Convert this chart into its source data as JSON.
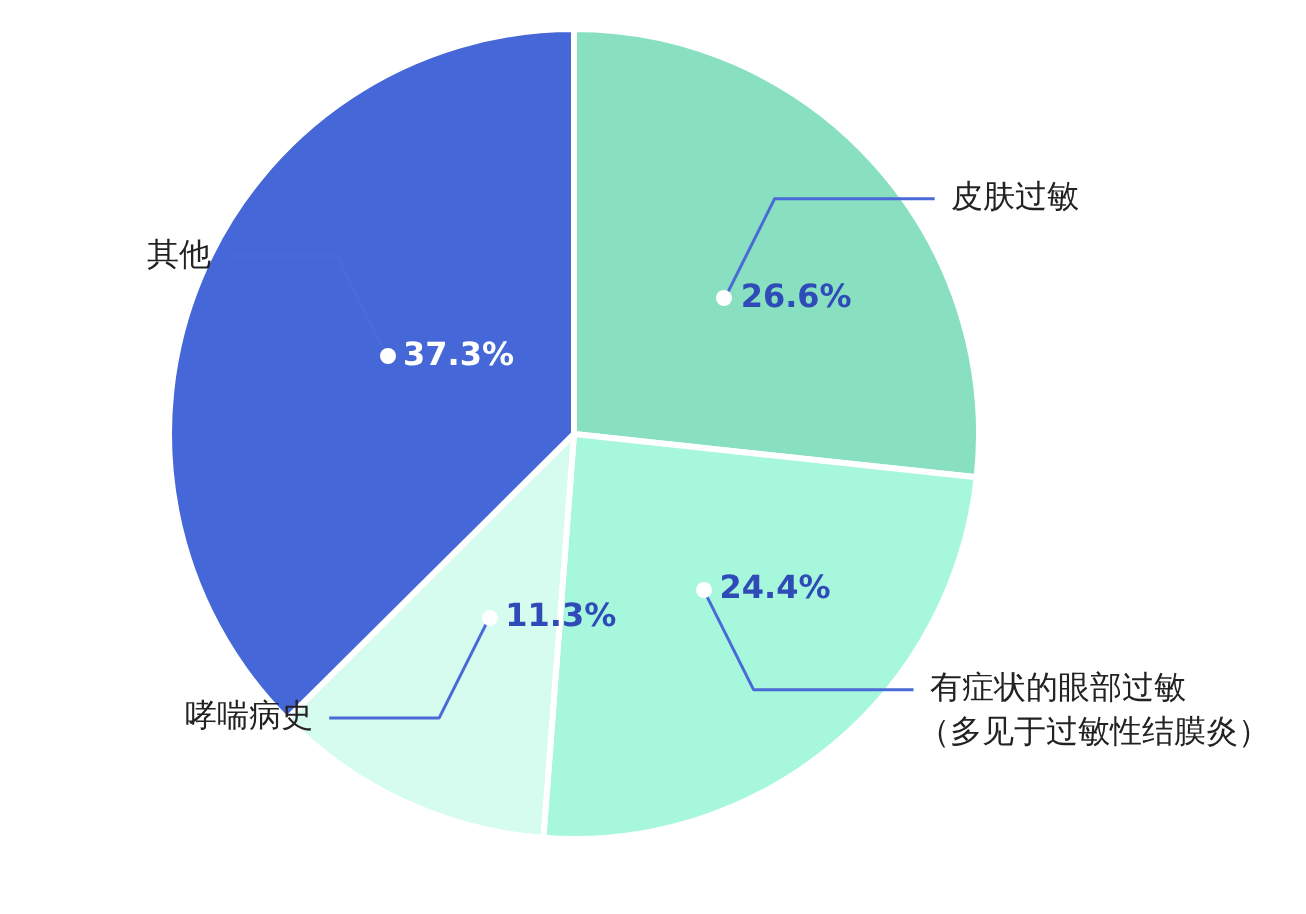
{
  "chart_data": {
    "type": "pie",
    "categories": [
      "皮肤过敏",
      "有症状的眼部过敏（多见于过敏性结膜炎）",
      "哮喘病史",
      "其他"
    ],
    "values": [
      26.6,
      24.4,
      11.3,
      37.3
    ],
    "value_labels": [
      "26.6%",
      "24.4%",
      "11.3%",
      "37.3%"
    ],
    "colors": [
      "#88e0c0",
      "#a6f7dc",
      "#d6fbef",
      "#4667d8"
    ],
    "legend": false
  }
}
